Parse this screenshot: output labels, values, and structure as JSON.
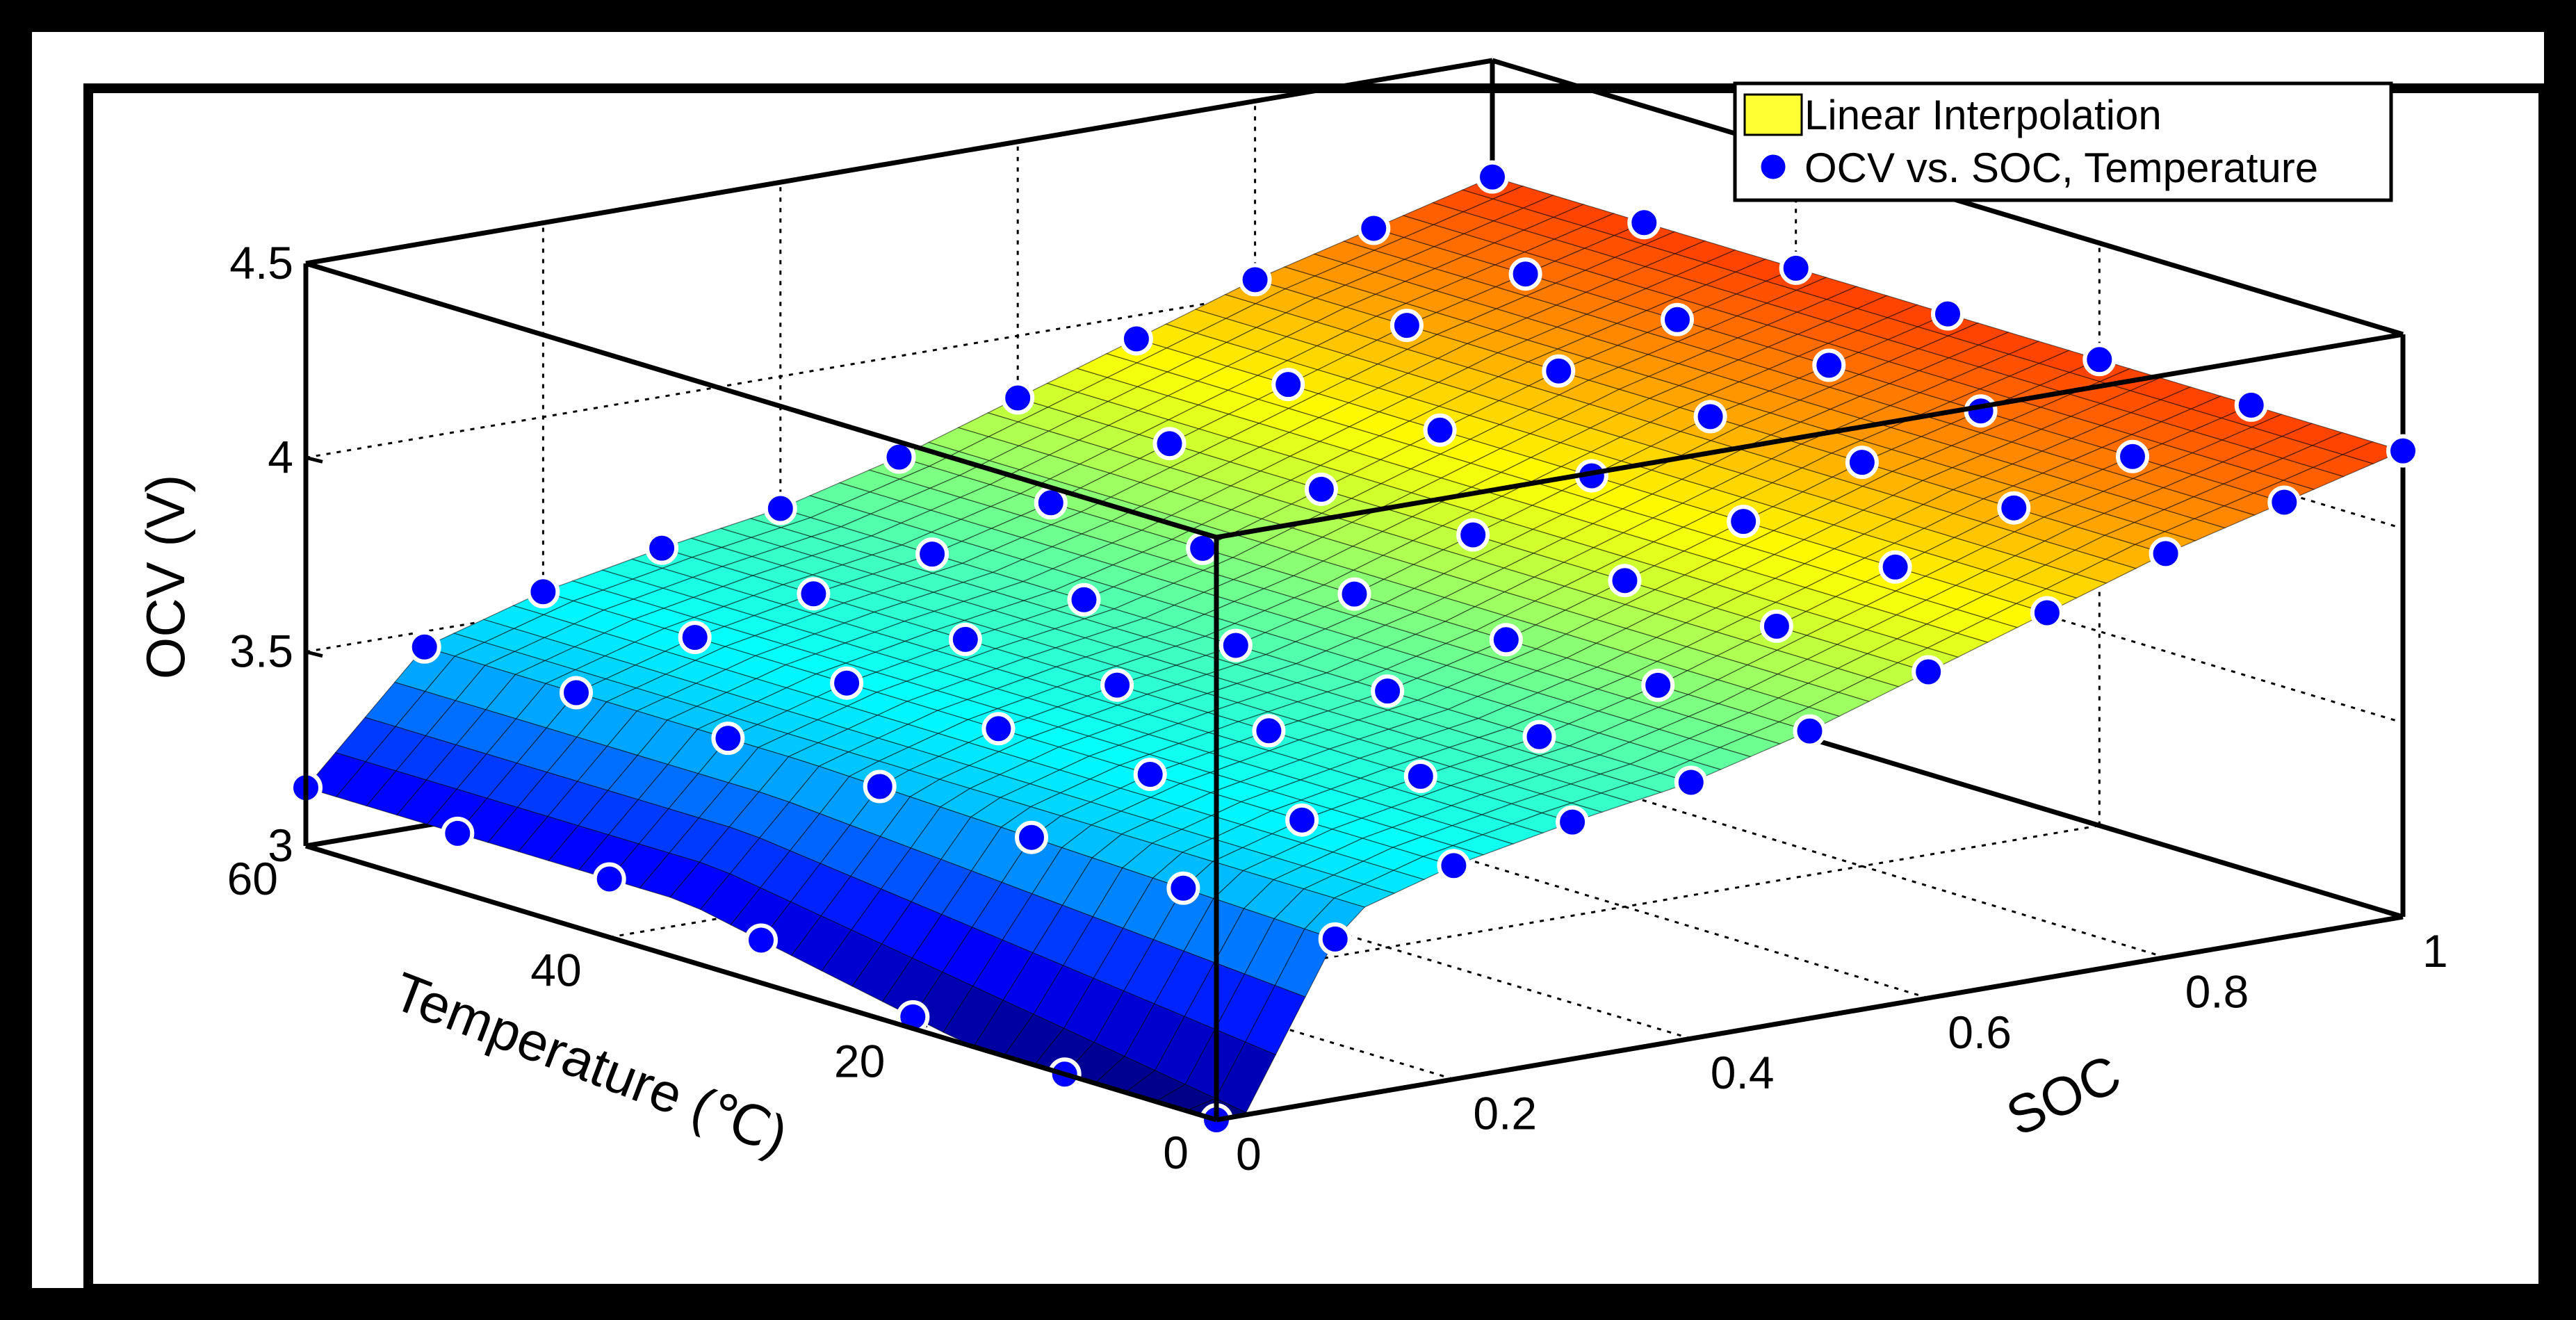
{
  "chart_data": {
    "type": "surface3d",
    "title": "",
    "xlabel": "SOC",
    "ylabel": "Temperature (℃)",
    "zlabel": "OCV (V)",
    "xlim": [
      0,
      1
    ],
    "ylim": [
      0,
      60
    ],
    "zlim": [
      3,
      4.5
    ],
    "x_ticks": [
      "0",
      "0.2",
      "0.4",
      "0.6",
      "0.8",
      "1"
    ],
    "y_ticks": [
      "0",
      "20",
      "40",
      "60"
    ],
    "z_ticks": [
      "3",
      "3.5",
      "4",
      "4.5"
    ],
    "grid": true,
    "legend_position": "top-right",
    "legend": [
      {
        "label": "Linear Interpolation",
        "marker": "filled-square",
        "color": "#ffff33"
      },
      {
        "label": "OCV vs. SOC, Temperature",
        "marker": "filled-circle",
        "color": "#0000ff"
      }
    ],
    "soc_samples": [
      0,
      0.1,
      0.2,
      0.3,
      0.4,
      0.5,
      0.6,
      0.7,
      0.8,
      0.9,
      1.0
    ],
    "temperature_samples": [
      0,
      10,
      20,
      30,
      40,
      50,
      60
    ],
    "ocv_at_soc": [
      3.15,
      3.46,
      3.55,
      3.61,
      3.66,
      3.74,
      3.84,
      3.94,
      4.04,
      4.12,
      4.2
    ],
    "low_soc_temperature_drop": 0.28,
    "colormap": "jet",
    "colors": {
      "axes_line": "#000000",
      "grid_line": "#000000",
      "marker_fill": "#0000ff",
      "marker_edge": "#ffffff",
      "legend_patch": "#ffff33"
    }
  }
}
